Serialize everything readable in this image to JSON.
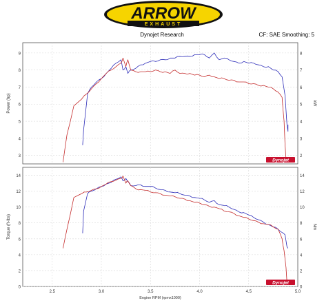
{
  "header": {
    "logo_text": "ARROW",
    "logo_subtext": "EXHAUST",
    "center_label": "Dynojet Research",
    "right_label": "CF: SAE Smoothing: 5"
  },
  "colors": {
    "series_a": "#2b2bb8",
    "series_b": "#c42a2a",
    "logo_yellow": "#f6d400",
    "logo_black": "#111111",
    "grid": "#d9d9d9",
    "watermark": "#c8102e"
  },
  "watermark_text": "Dynojet",
  "chart_data": [
    {
      "type": "line",
      "ylabel": "Power (hp)",
      "ylabel_right": "kW",
      "xlim": [
        2.2,
        5.0
      ],
      "ylim": [
        2.5,
        9.6
      ],
      "yticks": [
        "3",
        "4",
        "5",
        "6",
        "7",
        "8",
        "9"
      ],
      "yticks_right": [
        "2",
        "3",
        "4",
        "5",
        "6",
        "7",
        "8"
      ],
      "series": [
        {
          "x": [
            2.81,
            2.82,
            2.86,
            2.9,
            2.95,
            3.0,
            3.05,
            3.1,
            3.15,
            3.2,
            3.22,
            3.25,
            3.27,
            3.3,
            3.35,
            3.4,
            3.45,
            3.5,
            3.55,
            3.6,
            3.65,
            3.7,
            3.75,
            3.8,
            3.85,
            3.9,
            3.95,
            4.0,
            4.05,
            4.1,
            4.15,
            4.2,
            4.25,
            4.3,
            4.35,
            4.4,
            4.45,
            4.5,
            4.55,
            4.6,
            4.65,
            4.7,
            4.75,
            4.8,
            4.84,
            4.87,
            4.89,
            4.9,
            4.9
          ],
          "y": [
            3.6,
            4.5,
            6.6,
            7.0,
            7.3,
            7.5,
            7.8,
            8.1,
            8.4,
            8.6,
            8.0,
            8.2,
            7.8,
            8.0,
            8.1,
            8.3,
            8.4,
            8.5,
            8.5,
            8.6,
            8.6,
            8.7,
            8.7,
            8.8,
            8.8,
            8.8,
            8.9,
            8.9,
            8.9,
            8.7,
            9.0,
            8.6,
            8.7,
            8.6,
            8.5,
            8.4,
            8.5,
            8.4,
            8.4,
            8.3,
            8.2,
            8.2,
            8.0,
            7.9,
            7.6,
            6.5,
            4.8,
            4.4,
            4.8
          ]
        },
        {
          "x": [
            2.61,
            2.65,
            2.72,
            2.8,
            2.85,
            2.9,
            2.95,
            3.0,
            3.05,
            3.1,
            3.15,
            3.2,
            3.22,
            3.25,
            3.27,
            3.3,
            3.35,
            3.4,
            3.45,
            3.5,
            3.55,
            3.6,
            3.65,
            3.7,
            3.75,
            3.8,
            3.85,
            3.9,
            3.95,
            4.0,
            4.05,
            4.1,
            4.15,
            4.2,
            4.25,
            4.3,
            4.35,
            4.4,
            4.45,
            4.5,
            4.55,
            4.6,
            4.65,
            4.7,
            4.75,
            4.8,
            4.84,
            4.86,
            4.87,
            4.88,
            4.89
          ],
          "y": [
            2.6,
            4.2,
            5.9,
            6.3,
            6.6,
            6.9,
            7.2,
            7.5,
            7.8,
            8.0,
            8.2,
            8.4,
            8.7,
            8.2,
            8.6,
            8.0,
            7.9,
            7.9,
            7.9,
            7.9,
            8.0,
            7.9,
            7.9,
            7.8,
            8.0,
            7.8,
            7.8,
            7.8,
            7.7,
            7.7,
            7.6,
            7.7,
            7.6,
            7.5,
            7.5,
            7.4,
            7.4,
            7.3,
            7.3,
            7.2,
            7.2,
            7.1,
            7.1,
            7.0,
            6.9,
            6.7,
            6.4,
            5.0,
            3.6,
            2.8,
            2.6
          ]
        }
      ]
    },
    {
      "type": "line",
      "xlabel": "Engine RPM (rpmx1000)",
      "ylabel": "Torque (ft-lbs)",
      "ylabel_right": "Nm",
      "xlim": [
        2.2,
        5.0
      ],
      "ylim": [
        0,
        15
      ],
      "xticks": [
        "2.5",
        "3.0",
        "3.5",
        "4.0",
        "4.5",
        "5.0"
      ],
      "yticks": [
        "0",
        "2",
        "4",
        "6",
        "8",
        "10",
        "12",
        "14"
      ],
      "yticks_right": [
        "0",
        "2",
        "4",
        "6",
        "8",
        "10",
        "12",
        "14"
      ],
      "series": [
        {
          "x": [
            2.81,
            2.82,
            2.86,
            2.9,
            2.95,
            3.0,
            3.05,
            3.1,
            3.15,
            3.2,
            3.22,
            3.25,
            3.27,
            3.3,
            3.35,
            3.4,
            3.45,
            3.5,
            3.55,
            3.6,
            3.65,
            3.7,
            3.75,
            3.8,
            3.85,
            3.9,
            3.95,
            4.0,
            4.05,
            4.1,
            4.15,
            4.2,
            4.25,
            4.3,
            4.35,
            4.4,
            4.45,
            4.5,
            4.55,
            4.6,
            4.65,
            4.7,
            4.75,
            4.8,
            4.84,
            4.87,
            4.89,
            4.9
          ],
          "y": [
            6.7,
            9.5,
            11.7,
            12.0,
            12.3,
            12.6,
            12.9,
            13.1,
            13.5,
            13.8,
            13.3,
            13.6,
            13.2,
            12.7,
            12.7,
            12.8,
            12.6,
            12.6,
            12.4,
            12.2,
            12.1,
            11.9,
            11.8,
            11.7,
            11.5,
            11.4,
            11.2,
            11.1,
            10.9,
            10.6,
            10.8,
            10.3,
            10.2,
            10.0,
            9.7,
            9.4,
            9.3,
            9.0,
            8.7,
            8.4,
            8.1,
            7.8,
            7.5,
            7.2,
            6.8,
            6.5,
            5.0,
            4.8
          ]
        },
        {
          "x": [
            2.61,
            2.65,
            2.72,
            2.8,
            2.85,
            2.9,
            2.95,
            3.0,
            3.05,
            3.1,
            3.15,
            3.2,
            3.22,
            3.25,
            3.27,
            3.3,
            3.35,
            3.4,
            3.45,
            3.5,
            3.55,
            3.6,
            3.65,
            3.7,
            3.75,
            3.8,
            3.85,
            3.9,
            3.95,
            4.0,
            4.05,
            4.1,
            4.15,
            4.2,
            4.25,
            4.3,
            4.35,
            4.4,
            4.45,
            4.5,
            4.55,
            4.6,
            4.65,
            4.7,
            4.75,
            4.8,
            4.84,
            4.86,
            4.88,
            4.89
          ],
          "y": [
            4.8,
            7.2,
            11.2,
            11.7,
            11.9,
            12.1,
            12.3,
            12.6,
            12.9,
            13.2,
            13.4,
            13.6,
            13.9,
            13.0,
            13.3,
            12.7,
            12.3,
            12.2,
            12.1,
            11.9,
            11.8,
            11.7,
            11.5,
            11.4,
            11.3,
            11.1,
            11.0,
            10.8,
            10.6,
            10.5,
            10.3,
            10.1,
            10.0,
            9.8,
            9.5,
            9.4,
            9.2,
            8.9,
            8.7,
            8.5,
            8.3,
            8.1,
            7.9,
            7.8,
            7.5,
            7.2,
            6.0,
            4.5,
            2.4,
            0.5
          ]
        }
      ]
    }
  ]
}
